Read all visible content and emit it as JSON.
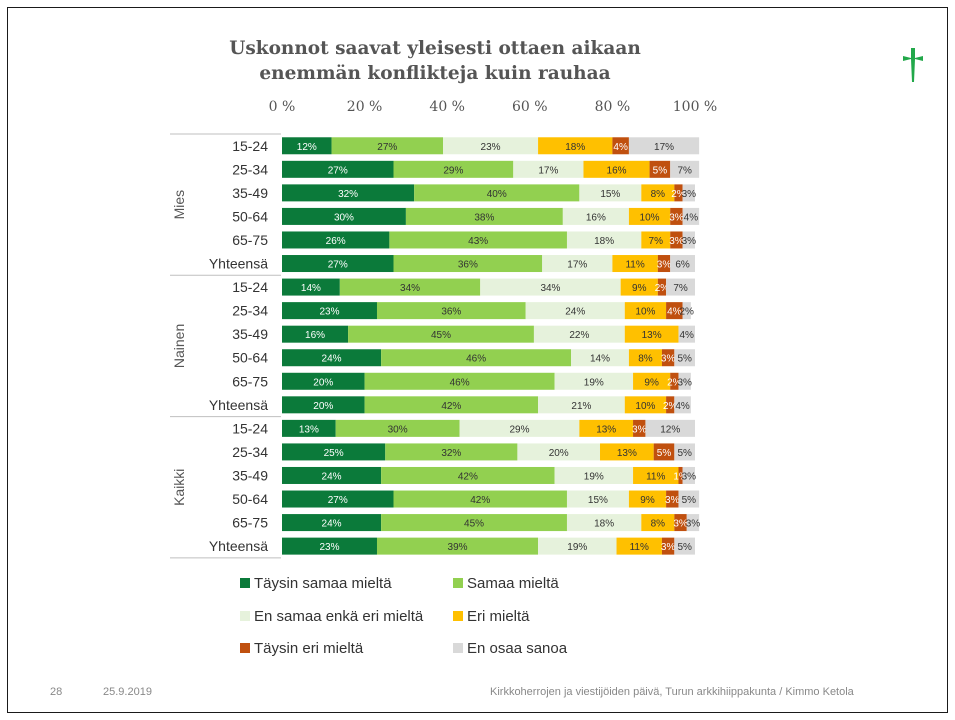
{
  "slide": {
    "page_number": "28",
    "date": "25.9.2019",
    "footer_text": "Kirkkoherrojen ja viestijöiden päivä, Turun arkkihiippakunta / Kimmo Ketola"
  },
  "colors": {
    "cross": "#22a84a",
    "axis_text": "#555555"
  },
  "chart_data": {
    "type": "bar",
    "orientation": "horizontal",
    "stacked": "100%",
    "title_lines": [
      "Uskonnot saavat yleisesti ottaen aikaan",
      "enemmän konflikteja kuin rauhaa"
    ],
    "xlim": [
      0,
      100
    ],
    "x_ticks": [
      "0 %",
      "20 %",
      "40 %",
      "60 %",
      "80 %",
      "100 %"
    ],
    "groups": [
      {
        "label": "Mies",
        "rows": [
          "15-24",
          "25-34",
          "35-49",
          "50-64",
          "65-75",
          "Yhteensä"
        ]
      },
      {
        "label": "Nainen",
        "rows": [
          "15-24",
          "25-34",
          "35-49",
          "50-64",
          "65-75",
          "Yhteensä"
        ]
      },
      {
        "label": "Kaikki",
        "rows": [
          "15-24",
          "25-34",
          "35-49",
          "50-64",
          "65-75",
          "Yhteensä"
        ]
      }
    ],
    "series": [
      {
        "name": "Täysin samaa mieltä",
        "color": "#0b7a3a",
        "text_color": "#ffffff",
        "values": [
          12,
          27,
          32,
          30,
          26,
          27,
          14,
          23,
          16,
          24,
          20,
          20,
          13,
          25,
          24,
          27,
          24,
          23
        ]
      },
      {
        "name": "Samaa mieltä",
        "color": "#92d050",
        "text_color": "#333333",
        "values": [
          27,
          29,
          40,
          38,
          43,
          36,
          34,
          36,
          45,
          46,
          46,
          42,
          30,
          32,
          42,
          42,
          45,
          39
        ]
      },
      {
        "name": "En samaa enkä eri mieltä",
        "color": "#e6f2dc",
        "text_color": "#333333",
        "values": [
          23,
          17,
          15,
          16,
          18,
          17,
          34,
          24,
          22,
          14,
          19,
          21,
          29,
          20,
          19,
          15,
          18,
          19
        ]
      },
      {
        "name": "Eri mieltä",
        "color": "#ffc000",
        "text_color": "#333333",
        "values": [
          18,
          16,
          8,
          10,
          7,
          11,
          9,
          10,
          13,
          8,
          9,
          10,
          13,
          13,
          11,
          9,
          8,
          11
        ]
      },
      {
        "name": "Täysin eri mieltä",
        "color": "#c0500f",
        "text_color": "#ffffff",
        "values": [
          4,
          5,
          2,
          3,
          3,
          3,
          2,
          4,
          0,
          3,
          2,
          2,
          3,
          5,
          1,
          3,
          3,
          3
        ]
      },
      {
        "name": "En osaa sanoa",
        "color": "#d9d9d9",
        "text_color": "#333333",
        "values": [
          17,
          7,
          3,
          4,
          3,
          6,
          7,
          2,
          4,
          5,
          3,
          4,
          12,
          5,
          3,
          5,
          3,
          5
        ]
      }
    ]
  }
}
